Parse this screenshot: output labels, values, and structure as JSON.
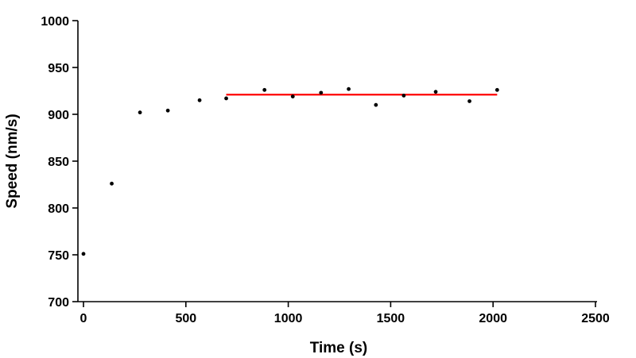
{
  "chart_data": {
    "type": "scatter",
    "xlabel": "Time (s)",
    "ylabel": "Speed (nm/s)",
    "xlim": [
      0,
      2500
    ],
    "ylim": [
      700,
      1000
    ],
    "x_ticks": [
      0,
      500,
      1000,
      1500,
      2000,
      2500
    ],
    "y_ticks": [
      700,
      750,
      800,
      850,
      900,
      950,
      1000
    ],
    "grid": false,
    "series": [
      {
        "type": "scatter",
        "color": "#000000",
        "points": [
          {
            "x": 0,
            "y": 751
          },
          {
            "x": 138,
            "y": 826
          },
          {
            "x": 276,
            "y": 902
          },
          {
            "x": 412,
            "y": 904
          },
          {
            "x": 567,
            "y": 915
          },
          {
            "x": 697,
            "y": 917
          },
          {
            "x": 884,
            "y": 926
          },
          {
            "x": 1022,
            "y": 919
          },
          {
            "x": 1160,
            "y": 923
          },
          {
            "x": 1295,
            "y": 927
          },
          {
            "x": 1428,
            "y": 910
          },
          {
            "x": 1564,
            "y": 920
          },
          {
            "x": 1720,
            "y": 924
          },
          {
            "x": 1885,
            "y": 914
          },
          {
            "x": 2020,
            "y": 926
          }
        ]
      },
      {
        "type": "line",
        "color": "#ff0000",
        "points": [
          {
            "x": 697,
            "y": 921
          },
          {
            "x": 2020,
            "y": 921
          }
        ]
      }
    ]
  }
}
